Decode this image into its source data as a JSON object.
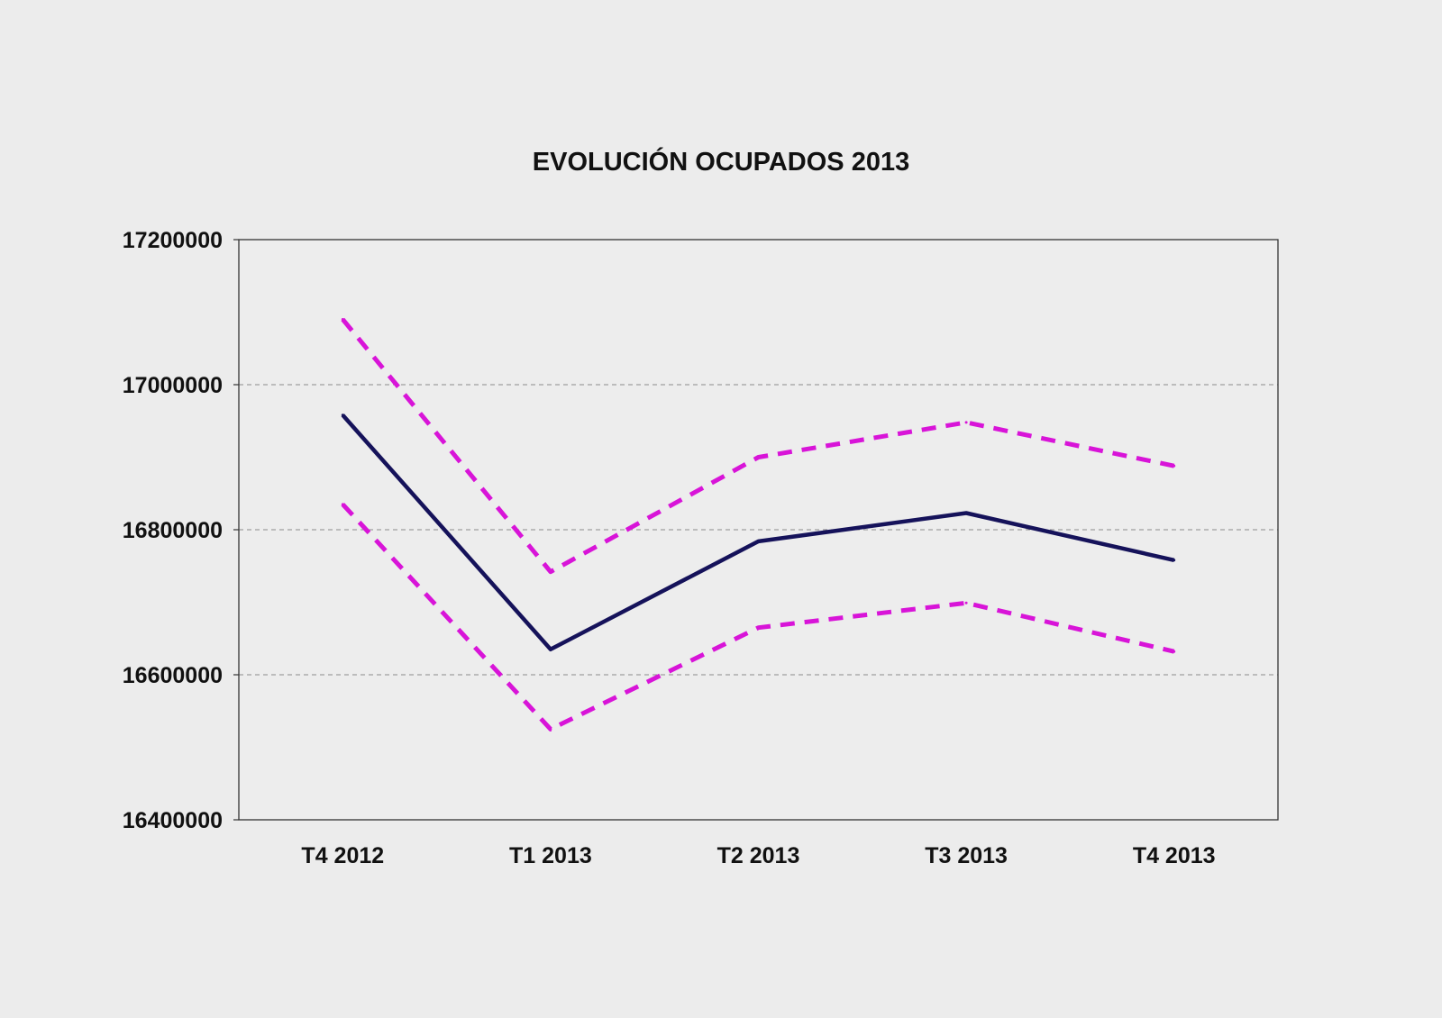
{
  "chart_data": {
    "type": "line",
    "title": "EVOLUCIÓN OCUPADOS 2013",
    "categories": [
      "T4 2012",
      "T1 2013",
      "T2 2013",
      "T3 2013",
      "T4 2013"
    ],
    "series": [
      {
        "values": [
          16958000,
          16635000,
          16784000,
          16823000,
          16758000
        ],
        "color": "#15125a",
        "style": "solid"
      },
      {
        "values": [
          17090000,
          16742000,
          16900000,
          16948000,
          16888000
        ],
        "color": "#d814d8",
        "style": "dashed"
      },
      {
        "values": [
          16835000,
          16525000,
          16665000,
          16699000,
          16632000
        ],
        "color": "#d814d8",
        "style": "dashed"
      }
    ],
    "y_ticks": [
      "16400000",
      "16600000",
      "16800000",
      "17000000",
      "17200000"
    ],
    "ylim": [
      16400000,
      17200000
    ],
    "grid": true,
    "legend": "none"
  }
}
